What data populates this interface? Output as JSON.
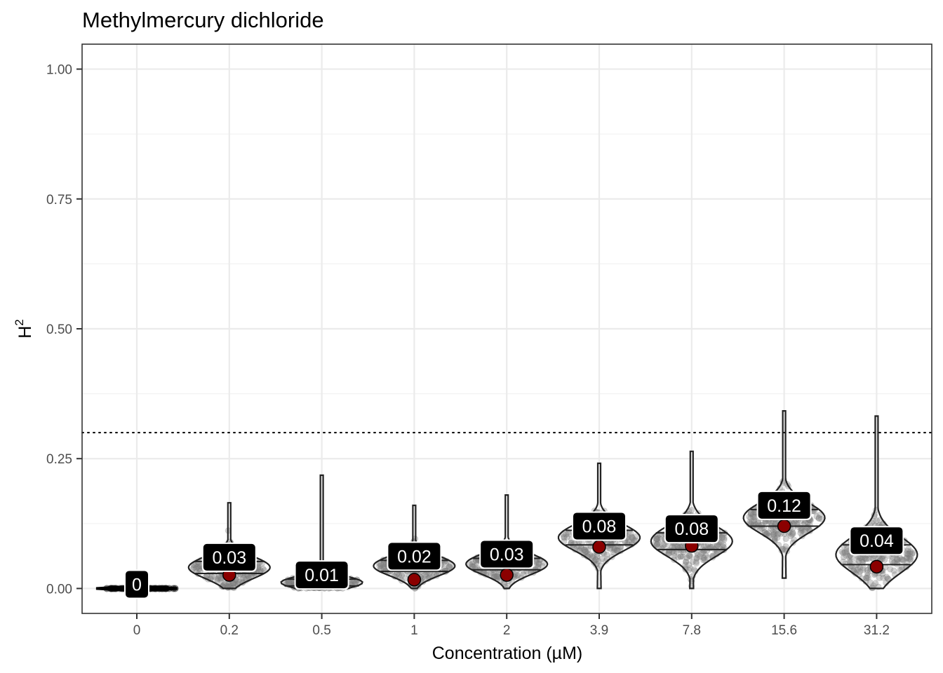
{
  "chart_data": {
    "type": "violin",
    "title": "Methylmercury dichloride",
    "xlabel": "Concentration (µM)",
    "ylabel": "H",
    "ylabel_superscript": "2",
    "ylim": [
      -0.048,
      1.048
    ],
    "yticks": [
      "0.00",
      "0.25",
      "0.50",
      "0.75",
      "1.00"
    ],
    "ytick_values": [
      0,
      0.25,
      0.5,
      0.75,
      1.0
    ],
    "reference_line": 0.3,
    "categories": [
      "0",
      "0.2",
      "0.5",
      "1",
      "2",
      "3.9",
      "7.8",
      "15.6",
      "31.2"
    ],
    "groups": [
      {
        "category": "0",
        "min": 0,
        "max": 0.01,
        "q1": 0,
        "q3": 0,
        "mean": 0,
        "label": "0"
      },
      {
        "category": "0.2",
        "min": 0,
        "max": 0.165,
        "q1": 0.029,
        "q3": 0.052,
        "mean": 0.026,
        "label": "0.03"
      },
      {
        "category": "0.5",
        "min": 0,
        "max": 0.218,
        "q1": 0.005,
        "q3": 0.018,
        "mean": 0.011,
        "label": "0.01"
      },
      {
        "category": "1",
        "min": 0,
        "max": 0.16,
        "q1": 0.033,
        "q3": 0.054,
        "mean": 0.017,
        "label": "0.02"
      },
      {
        "category": "2",
        "min": 0,
        "max": 0.18,
        "q1": 0.036,
        "q3": 0.058,
        "mean": 0.026,
        "label": "0.03"
      },
      {
        "category": "3.9",
        "min": 0,
        "max": 0.241,
        "q1": 0.084,
        "q3": 0.112,
        "mean": 0.08,
        "label": "0.08"
      },
      {
        "category": "7.8",
        "min": 0,
        "max": 0.264,
        "q1": 0.075,
        "q3": 0.107,
        "mean": 0.082,
        "label": "0.08"
      },
      {
        "category": "15.6",
        "min": 0.02,
        "max": 0.342,
        "q1": 0.12,
        "q3": 0.152,
        "mean": 0.12,
        "label": "0.12"
      },
      {
        "category": "31.2",
        "min": 0,
        "max": 0.332,
        "q1": 0.046,
        "q3": 0.084,
        "mean": 0.042,
        "label": "0.04"
      }
    ],
    "grid": true,
    "legend": "none",
    "colors": {
      "mean_point": "#8b0000",
      "violin_outline": "#222222",
      "points": "#808080",
      "label_box": "#000000",
      "label_text": "#ffffff",
      "grid": "#ebebeb"
    }
  }
}
